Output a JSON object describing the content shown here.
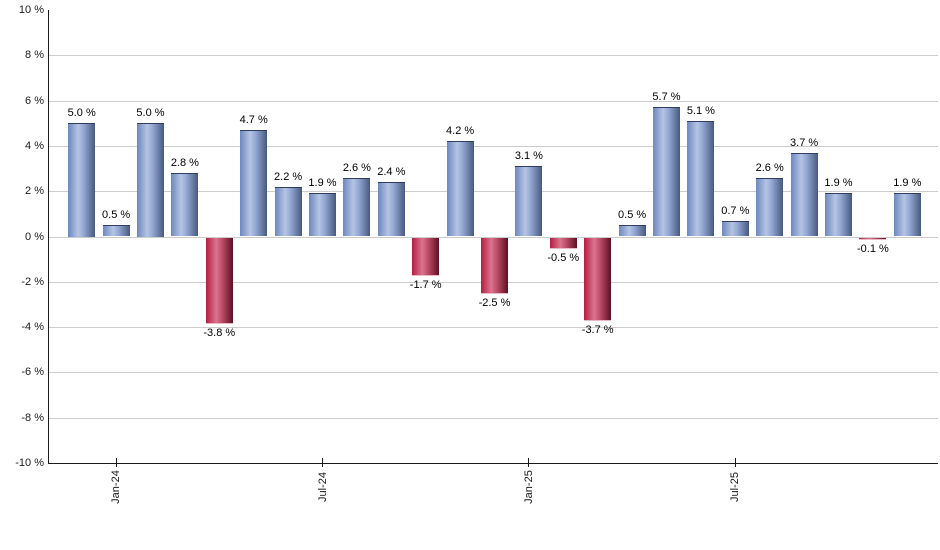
{
  "chart_data": {
    "type": "bar",
    "title": "",
    "unit": "%",
    "values": [
      5.0,
      0.5,
      5.0,
      2.8,
      -3.8,
      4.7,
      2.2,
      1.9,
      2.6,
      2.4,
      -1.7,
      4.2,
      -2.5,
      3.1,
      -0.5,
      -3.7,
      0.5,
      5.7,
      5.1,
      0.7,
      2.6,
      3.7,
      1.9,
      -0.1,
      1.9
    ],
    "value_labels": [
      "5.0 %",
      "0.5 %",
      "5.0 %",
      "2.8 %",
      "-3.8 %",
      "4.7 %",
      "2.2 %",
      "1.9 %",
      "2.6 %",
      "2.4 %",
      "-1.7 %",
      "4.2 %",
      "-2.5 %",
      "3.1 %",
      "-0.5 %",
      "-3.7 %",
      "0.5 %",
      "5.7 %",
      "5.1 %",
      "0.7 %",
      "2.6 %",
      "3.7 %",
      "1.9 %",
      "-0.1 %",
      "1.9 %"
    ],
    "x_axis": {
      "tick_labels": [
        {
          "label": "Jan-24",
          "bar_index": 1
        },
        {
          "label": "Jul-24",
          "bar_index": 7
        },
        {
          "label": "Jan-25",
          "bar_index": 13
        },
        {
          "label": "Jul-25",
          "bar_index": 19
        }
      ]
    },
    "y_axis": {
      "min": -10,
      "max": 10,
      "step": 2,
      "tick_labels": [
        "10 %",
        "8 %",
        "6 %",
        "4 %",
        "2 %",
        "0 %",
        "-2 %",
        "-4 %",
        "-6 %",
        "-8 %",
        "-10 %"
      ]
    },
    "grid": "horizontal",
    "legend": "none",
    "colors": {
      "positive_bar_left": "#6c88be",
      "positive_bar_highlight": "#b5c4e4",
      "positive_bar_right": "#47597f",
      "negative_bar_left": "#b51d41",
      "negative_bar_highlight": "#da7590",
      "negative_bar_right": "#5e0f22",
      "gridline": "#cccccc",
      "axis_line": "#000000",
      "label_text": "#000000",
      "background": "#ffffff"
    }
  }
}
